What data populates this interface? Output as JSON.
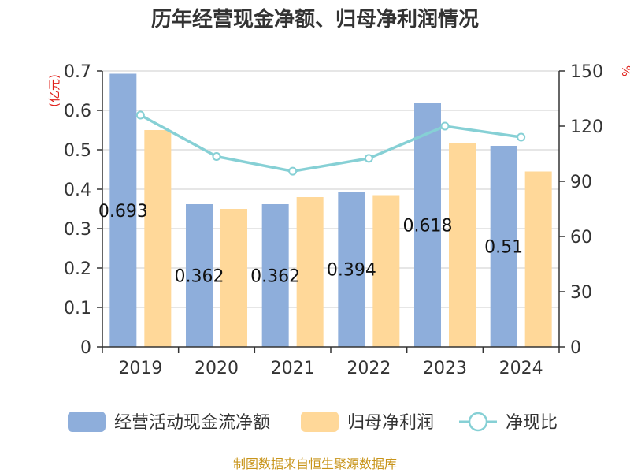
{
  "chart_data": {
    "type": "bar",
    "title": "历年经营现金净额、归母净利润情况",
    "categories": [
      "2019",
      "2020",
      "2021",
      "2022",
      "2023",
      "2024"
    ],
    "series": [
      {
        "name": "经营活动现金流净额",
        "axis": "left",
        "kind": "bar",
        "color": "#8eaedb",
        "values": [
          0.693,
          0.362,
          0.362,
          0.394,
          0.618,
          0.51
        ]
      },
      {
        "name": "归母净利润",
        "axis": "left",
        "kind": "bar",
        "color": "#ffd899",
        "values": [
          0.55,
          0.35,
          0.38,
          0.385,
          0.517,
          0.445
        ]
      },
      {
        "name": "净现比",
        "axis": "right",
        "kind": "line",
        "color": "#86d0d5",
        "values": [
          126,
          103.5,
          95.5,
          102.5,
          120,
          114
        ]
      }
    ],
    "data_labels": [
      "0.693",
      "0.362",
      "0.362",
      "0.394",
      "0.618",
      "0.51"
    ],
    "left_axis": {
      "unit": "(亿元)",
      "min": 0,
      "max": 0.7,
      "ticks": [
        "0",
        "0.1",
        "0.2",
        "0.3",
        "0.4",
        "0.5",
        "0.6",
        "0.7"
      ]
    },
    "right_axis": {
      "unit": "%",
      "min": 0,
      "max": 150,
      "ticks": [
        "0",
        "30",
        "60",
        "90",
        "120",
        "150"
      ]
    },
    "grid": true,
    "legend_position": "bottom"
  },
  "source": "制图数据来自恒生聚源数据库"
}
